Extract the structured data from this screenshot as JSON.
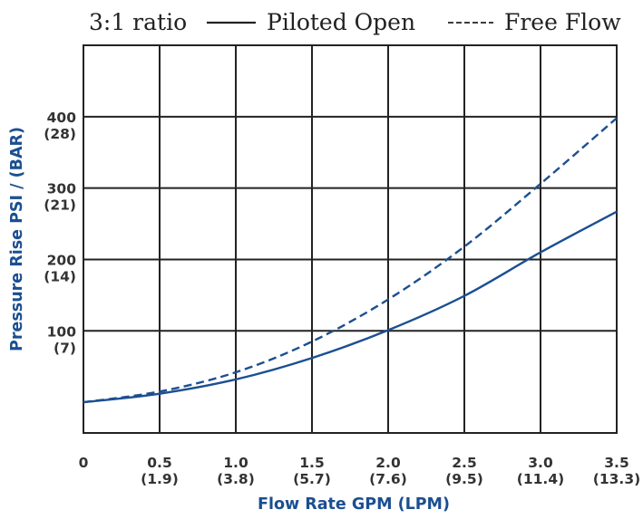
{
  "chart_data": {
    "type": "line",
    "legend": {
      "ratio": "3:1 ratio",
      "items": [
        {
          "label": "Piloted Open",
          "style": "solid"
        },
        {
          "label": "Free Flow",
          "style": "dashed"
        }
      ],
      "placement": "top"
    },
    "xlabel": "Flow Rate GPM (LPM)",
    "ylabel": "Pressure Rise PSI / (BAR)",
    "xlim": [
      0,
      3.5
    ],
    "ylim": [
      -43,
      500
    ],
    "grid": true,
    "x_ticks": [
      {
        "value": 0,
        "label": "0",
        "sub": ""
      },
      {
        "value": 0.5,
        "label": "0.5",
        "sub": "(1.9)"
      },
      {
        "value": 1.0,
        "label": "1.0",
        "sub": "(3.8)"
      },
      {
        "value": 1.5,
        "label": "1.5",
        "sub": "(5.7)"
      },
      {
        "value": 2.0,
        "label": "2.0",
        "sub": "(7.6)"
      },
      {
        "value": 2.5,
        "label": "2.5",
        "sub": "(9.5)"
      },
      {
        "value": 3.0,
        "label": "3.0",
        "sub": "(11.4)"
      },
      {
        "value": 3.5,
        "label": "3.5",
        "sub": "(13.3)"
      }
    ],
    "y_ticks": [
      {
        "value": 100,
        "label": "100",
        "sub": "(7)"
      },
      {
        "value": 200,
        "label": "200",
        "sub": "(14)"
      },
      {
        "value": 300,
        "label": "300",
        "sub": "(21)"
      },
      {
        "value": 400,
        "label": "400",
        "sub": "(28)"
      }
    ],
    "series": [
      {
        "name": "Piloted Open",
        "style": "solid",
        "color": "#1b4f91",
        "points": [
          [
            0,
            0
          ],
          [
            0.5,
            12
          ],
          [
            1.0,
            32
          ],
          [
            1.5,
            62
          ],
          [
            2.0,
            101
          ],
          [
            2.5,
            149
          ],
          [
            3.0,
            210
          ],
          [
            3.5,
            267
          ]
        ]
      },
      {
        "name": "Free Flow",
        "style": "dashed",
        "color": "#1b4f91",
        "points": [
          [
            0,
            0
          ],
          [
            0.5,
            15
          ],
          [
            1.0,
            42
          ],
          [
            1.5,
            85
          ],
          [
            2.0,
            144
          ],
          [
            2.5,
            218
          ],
          [
            3.0,
            306
          ],
          [
            3.5,
            398
          ]
        ]
      }
    ]
  }
}
